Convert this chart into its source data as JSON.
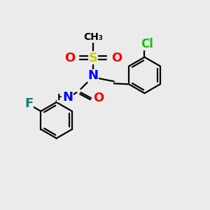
{
  "bg_color": "#ebebeb",
  "bond_color": "#000000",
  "bond_width": 1.6,
  "atom_colors": {
    "N": "#0000ff",
    "O": "#ff0000",
    "S": "#cccc00",
    "F": "#008080",
    "Cl": "#00cc00",
    "H": "#000000"
  },
  "font_size": 11
}
